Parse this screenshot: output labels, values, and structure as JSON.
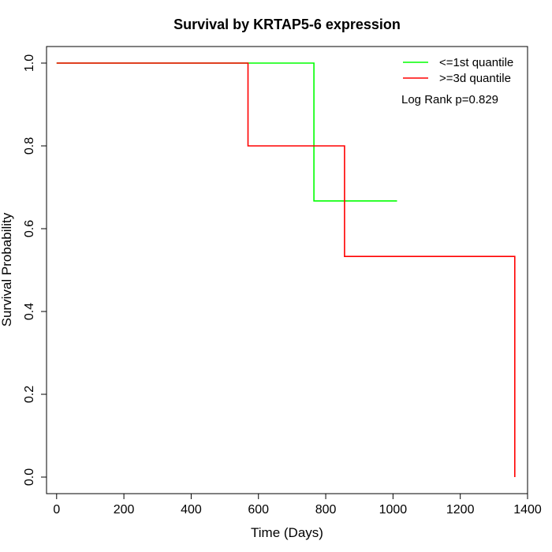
{
  "chart_data": {
    "type": "line",
    "title": "Survival by KRTAP5-6 expression",
    "xlabel": "Time (Days)",
    "ylabel": "Survival Probability",
    "xlim": [
      -30,
      1400
    ],
    "ylim": [
      -0.04,
      1.04
    ],
    "x_ticks": [
      0,
      200,
      400,
      600,
      800,
      1000,
      1200,
      1400
    ],
    "y_ticks": [
      0.0,
      0.2,
      0.4,
      0.6,
      0.8,
      1.0
    ],
    "y_tick_labels": [
      "0.0",
      "0.2",
      "0.4",
      "0.6",
      "0.8",
      "1.0"
    ],
    "grid": false,
    "legend_position": "top-right",
    "annotation": "Log Rank p=0.829",
    "series": [
      {
        "name": "<=1st quantile",
        "color": "#00ff00",
        "step": true,
        "x": [
          0,
          765,
          765,
          1012
        ],
        "y": [
          1.0,
          1.0,
          0.667,
          0.667
        ]
      },
      {
        "name": ">=3d quantile",
        "color": "#ff0000",
        "step": true,
        "x": [
          0,
          569,
          569,
          856,
          856,
          1362,
          1362
        ],
        "y": [
          1.0,
          1.0,
          0.8,
          0.8,
          0.533,
          0.533,
          0.0
        ]
      }
    ]
  }
}
